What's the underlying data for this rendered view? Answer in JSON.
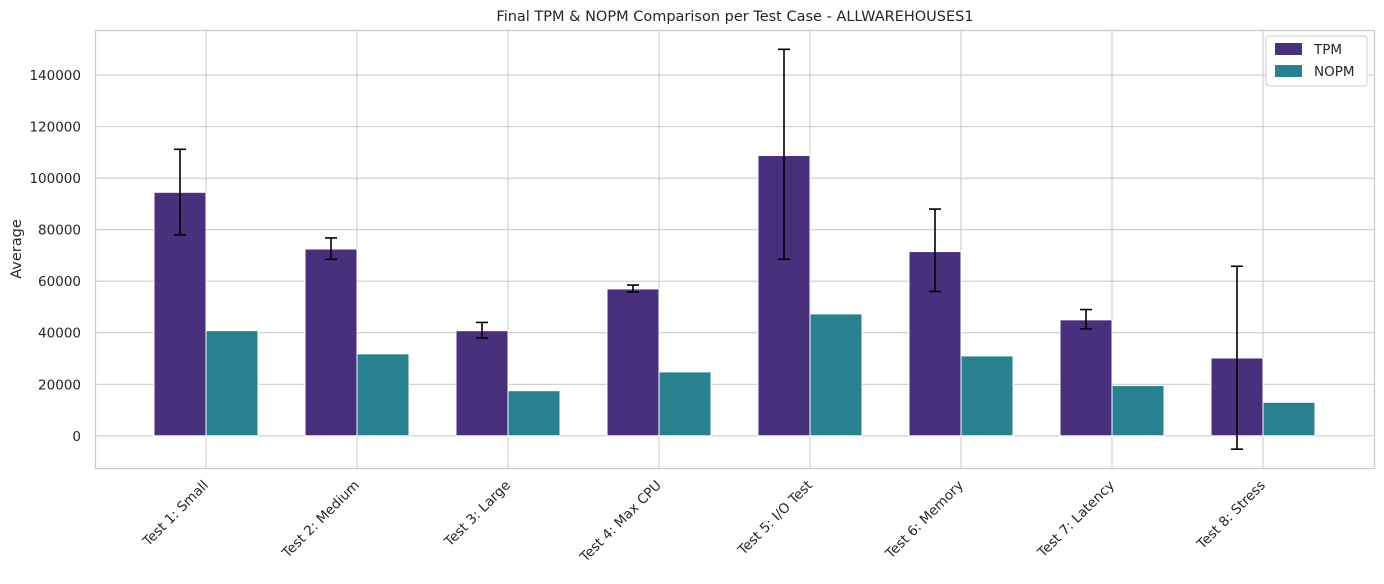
{
  "chart_data": {
    "type": "bar",
    "title": "Final TPM & NOPM Comparison per Test Case - ALLWAREHOUSES1",
    "xlabel": "",
    "ylabel": "Average",
    "categories": [
      "Test 1: Small",
      "Test 2: Medium",
      "Test 3: Large",
      "Test 4: Max CPU",
      "Test 5: I/O Test",
      "Test 6: Memory",
      "Test 7: Latency",
      "Test 8: Stress"
    ],
    "series": [
      {
        "name": "TPM",
        "color": "#48307c",
        "values": [
          94500,
          72500,
          40800,
          57000,
          108800,
          71500,
          45000,
          30200
        ],
        "error_low": [
          78000,
          68500,
          38000,
          55800,
          68500,
          56000,
          41500,
          -5200
        ],
        "error_high": [
          111200,
          76800,
          44000,
          58500,
          150000,
          88000,
          49000,
          65800
        ]
      },
      {
        "name": "NOPM",
        "color": "#27818e",
        "values": [
          40800,
          31800,
          17500,
          24800,
          47300,
          31000,
          19500,
          13000
        ]
      }
    ],
    "yticks": [
      0,
      20000,
      40000,
      60000,
      80000,
      100000,
      120000,
      140000
    ],
    "ylim": [
      -12500,
      157500
    ],
    "grid": true,
    "legend_position": "top-right"
  }
}
